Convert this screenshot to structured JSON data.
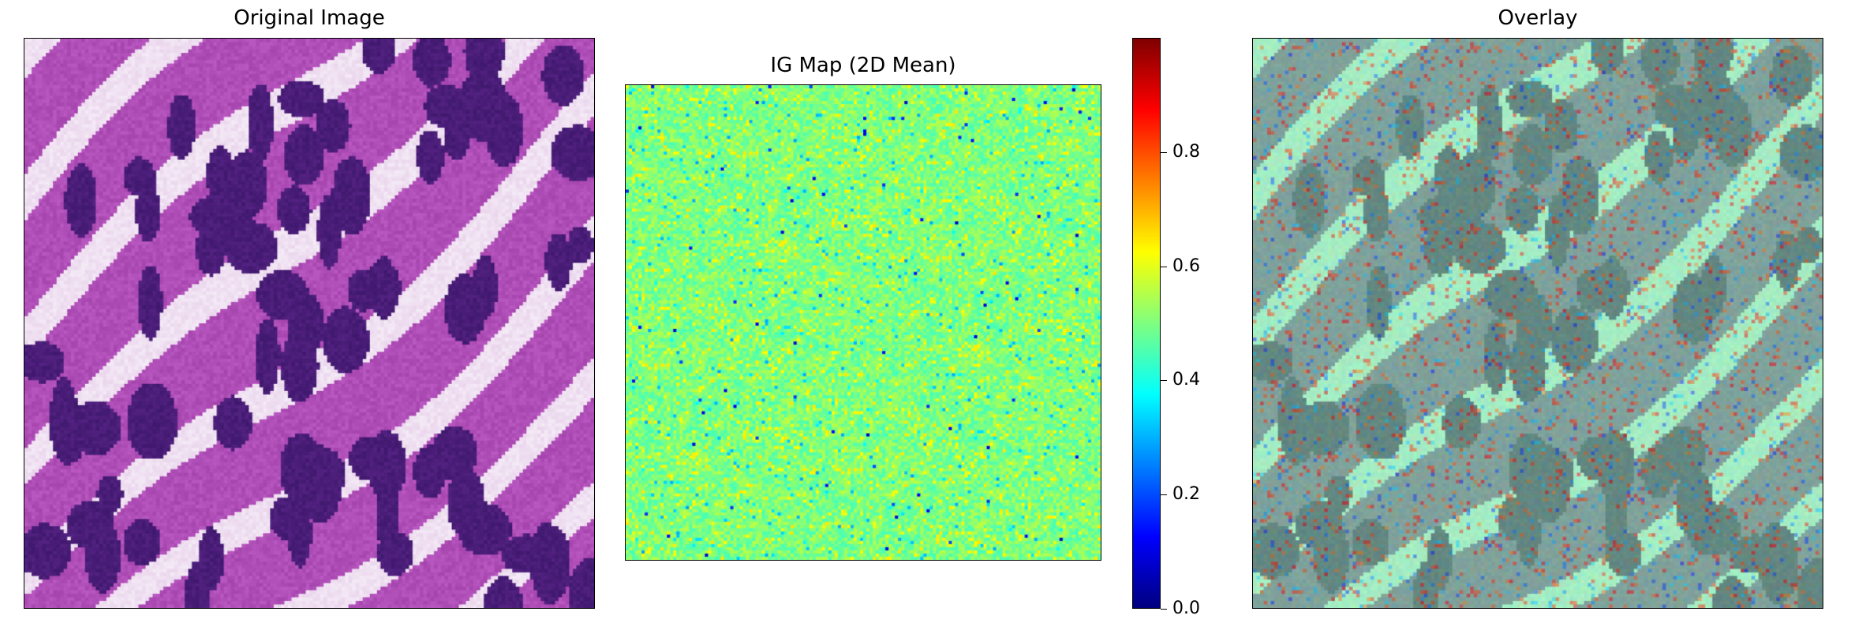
{
  "panels": {
    "original": {
      "title": "Original Image"
    },
    "ig_map": {
      "title": "IG Map (2D Mean)"
    },
    "overlay": {
      "title": "Overlay"
    }
  },
  "colorbar": {
    "colormap": "jet",
    "range": [
      0.0,
      1.0
    ],
    "ticks": [
      "0.0",
      "0.2",
      "0.4",
      "0.6",
      "0.8"
    ]
  },
  "colors": {
    "stain_purple": "#b04fb8",
    "nuclei_dark": "#4a1e78",
    "ig_background": "#7ef0a0",
    "overlay_tint": "#8fb3b0"
  }
}
